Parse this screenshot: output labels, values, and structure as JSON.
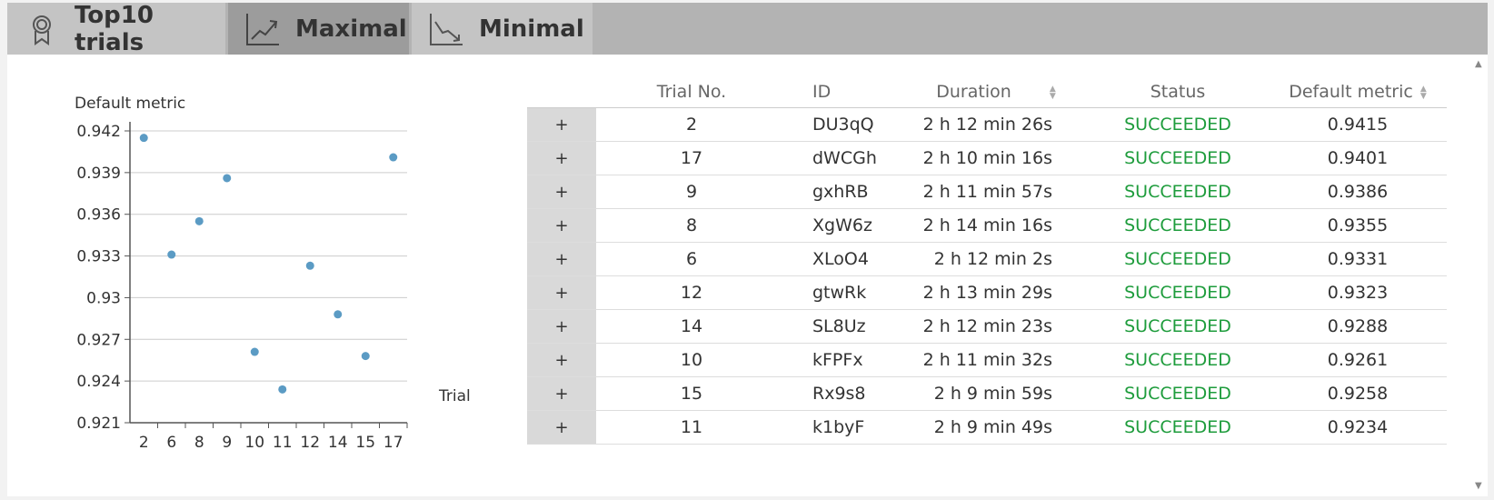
{
  "tabs": [
    {
      "label": "Top10 trials",
      "icon": "award-ribbon-icon",
      "active": false
    },
    {
      "label": "Maximal",
      "icon": "trend-up-icon",
      "active": true
    },
    {
      "label": "Minimal",
      "icon": "trend-down-icon",
      "active": false
    }
  ],
  "chart_data": {
    "type": "scatter",
    "ylabel": "Default metric",
    "xlabel": "Trial",
    "categories": [
      "2",
      "6",
      "8",
      "9",
      "10",
      "11",
      "12",
      "14",
      "15",
      "17"
    ],
    "values": [
      0.9415,
      0.9331,
      0.9355,
      0.9386,
      0.9261,
      0.9234,
      0.9323,
      0.9288,
      0.9258,
      0.9401
    ],
    "yticks": [
      "0.921",
      "0.924",
      "0.927",
      "0.93",
      "0.933",
      "0.936",
      "0.939",
      "0.942"
    ],
    "ylim": [
      0.921,
      0.942
    ],
    "grid": true,
    "point_color": "#5b9bc4"
  },
  "table": {
    "columns": {
      "trial": "Trial No.",
      "id": "ID",
      "duration": "Duration",
      "status": "Status",
      "metric": "Default metric"
    },
    "expand_label": "+",
    "rows": [
      {
        "trial": "2",
        "id": "DU3qQ",
        "duration": "2 h 12 min 26s",
        "status": "SUCCEEDED",
        "metric": "0.9415"
      },
      {
        "trial": "17",
        "id": "dWCGh",
        "duration": "2 h 10 min 16s",
        "status": "SUCCEEDED",
        "metric": "0.9401"
      },
      {
        "trial": "9",
        "id": "gxhRB",
        "duration": "2 h 11 min 57s",
        "status": "SUCCEEDED",
        "metric": "0.9386"
      },
      {
        "trial": "8",
        "id": "XgW6z",
        "duration": "2 h 14 min 16s",
        "status": "SUCCEEDED",
        "metric": "0.9355"
      },
      {
        "trial": "6",
        "id": "XLoO4",
        "duration": "2 h 12 min 2s",
        "status": "SUCCEEDED",
        "metric": "0.9331"
      },
      {
        "trial": "12",
        "id": "gtwRk",
        "duration": "2 h 13 min 29s",
        "status": "SUCCEEDED",
        "metric": "0.9323"
      },
      {
        "trial": "14",
        "id": "SL8Uz",
        "duration": "2 h 12 min 23s",
        "status": "SUCCEEDED",
        "metric": "0.9288"
      },
      {
        "trial": "10",
        "id": "kFPFx",
        "duration": "2 h 11 min 32s",
        "status": "SUCCEEDED",
        "metric": "0.9261"
      },
      {
        "trial": "15",
        "id": "Rx9s8",
        "duration": "2 h 9 min 59s",
        "status": "SUCCEEDED",
        "metric": "0.9258"
      },
      {
        "trial": "11",
        "id": "k1byF",
        "duration": "2 h 9 min 49s",
        "status": "SUCCEEDED",
        "metric": "0.9234"
      }
    ]
  },
  "colors": {
    "status_succeeded": "#1e9c3c",
    "tab_active": "#9c9c9c",
    "tab_inactive": "#c4c4c4"
  }
}
